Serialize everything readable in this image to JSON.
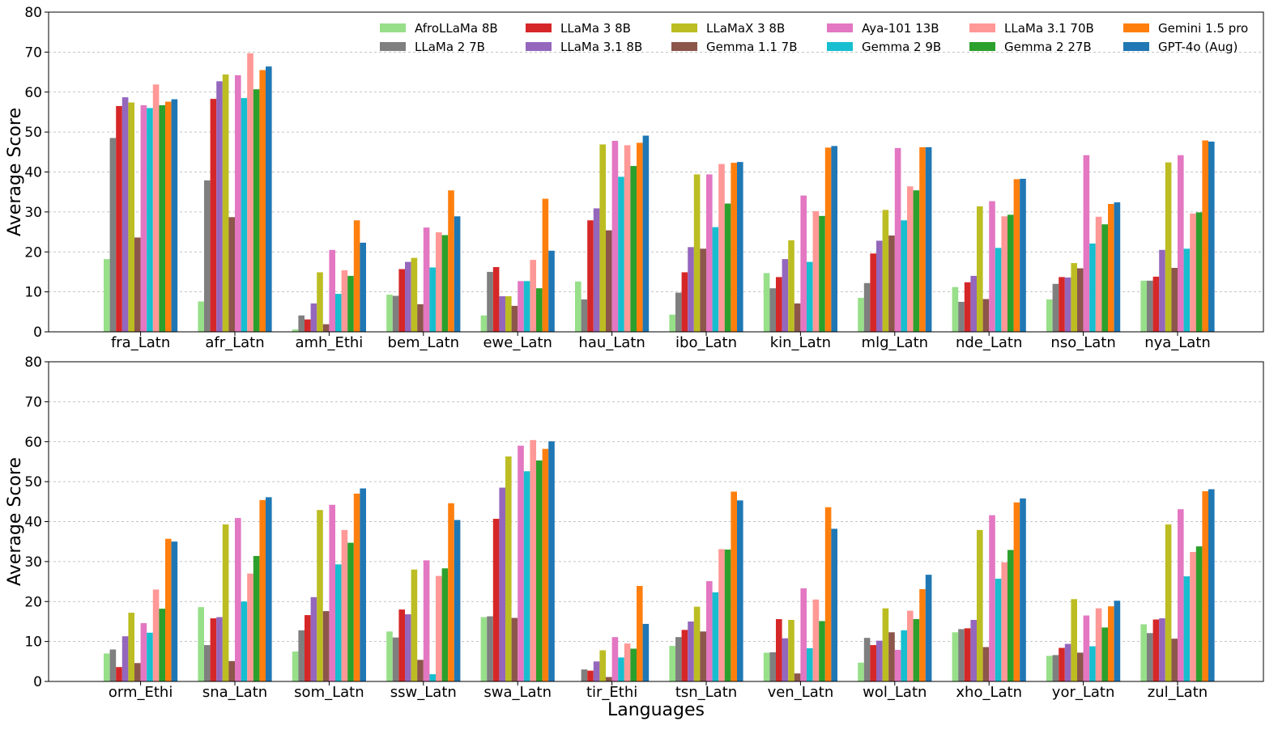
{
  "chart_data": [
    {
      "type": "bar",
      "ylabel": "Average Score",
      "xlabel": "",
      "ylim": [
        0,
        80
      ],
      "yticks": [
        0,
        10,
        20,
        30,
        40,
        50,
        60,
        70,
        80
      ],
      "grid": "horizontal dashed",
      "legend": "top-right",
      "categories": [
        "fra_Latn",
        "afr_Latn",
        "amh_Ethi",
        "bem_Latn",
        "ewe_Latn",
        "hau_Latn",
        "ibo_Latn",
        "kin_Latn",
        "mlg_Latn",
        "nde_Latn",
        "nso_Latn",
        "nya_Latn"
      ],
      "series": [
        {
          "name": "AfroLLaMa 8B",
          "color": "#98df8a",
          "values": [
            18.2,
            7.6,
            0.6,
            9.3,
            4.1,
            12.6,
            4.3,
            14.7,
            8.5,
            11.2,
            8.1,
            12.8
          ]
        },
        {
          "name": "LLaMa 2 7B",
          "color": "#7f7f7f",
          "values": [
            48.5,
            37.9,
            4.1,
            9.0,
            15.0,
            8.1,
            9.8,
            10.9,
            12.2,
            7.5,
            12.0,
            12.8
          ]
        },
        {
          "name": "LLaMa 3 8B",
          "color": "#d62728",
          "values": [
            56.5,
            58.3,
            3.1,
            15.7,
            16.2,
            27.9,
            14.9,
            13.7,
            19.6,
            12.4,
            13.7,
            13.8
          ]
        },
        {
          "name": "LLaMa 3.1 8B",
          "color": "#9467bd",
          "values": [
            58.7,
            62.7,
            7.1,
            17.5,
            8.9,
            30.9,
            21.2,
            18.2,
            22.8,
            14.0,
            13.6,
            20.5
          ]
        },
        {
          "name": "LLaMaX 3 8B",
          "color": "#bcbd22",
          "values": [
            57.4,
            64.4,
            14.9,
            18.5,
            8.9,
            46.9,
            39.4,
            22.9,
            30.5,
            31.4,
            17.2,
            42.4
          ]
        },
        {
          "name": "Gemma 1.1 7B",
          "color": "#8c564b",
          "values": [
            23.6,
            28.7,
            1.9,
            6.9,
            6.5,
            25.4,
            20.8,
            7.1,
            24.1,
            8.2,
            15.9,
            16.0
          ]
        },
        {
          "name": "Aya-101 13B",
          "color": "#e377c2",
          "values": [
            56.7,
            64.2,
            20.5,
            26.1,
            12.7,
            47.8,
            39.4,
            34.1,
            46.0,
            32.7,
            44.2,
            44.2
          ]
        },
        {
          "name": "Gemma 2 9B",
          "color": "#17becf",
          "values": [
            56.0,
            58.5,
            9.5,
            16.1,
            12.7,
            38.8,
            26.2,
            17.5,
            27.9,
            21.0,
            22.1,
            20.8
          ]
        },
        {
          "name": "LLaMa 3.1 70B",
          "color": "#ff9896",
          "values": [
            61.9,
            69.7,
            15.4,
            24.9,
            18.0,
            46.7,
            42.0,
            30.2,
            36.4,
            28.9,
            28.8,
            29.6
          ]
        },
        {
          "name": "Gemma 2 27B",
          "color": "#2ca02c",
          "values": [
            56.7,
            60.7,
            14.0,
            24.2,
            10.9,
            41.5,
            32.1,
            29.0,
            35.4,
            29.3,
            26.9,
            29.9
          ]
        },
        {
          "name": "Gemini 1.5 pro",
          "color": "#ff7f0e",
          "values": [
            57.6,
            65.5,
            27.9,
            35.4,
            33.3,
            47.3,
            42.3,
            46.1,
            46.2,
            38.2,
            32.0,
            47.9
          ]
        },
        {
          "name": "GPT-4o (Aug)",
          "color": "#1f77b4",
          "values": [
            58.2,
            66.4,
            22.3,
            28.9,
            20.3,
            49.1,
            42.5,
            46.5,
            46.2,
            38.3,
            32.4,
            47.6
          ]
        }
      ]
    },
    {
      "type": "bar",
      "ylabel": "Average Score",
      "xlabel": "Languages",
      "ylim": [
        0,
        80
      ],
      "yticks": [
        0,
        10,
        20,
        30,
        40,
        50,
        60,
        70,
        80
      ],
      "grid": "horizontal dashed",
      "categories": [
        "orm_Ethi",
        "sna_Latn",
        "som_Latn",
        "ssw_Latn",
        "swa_Latn",
        "tir_Ethi",
        "tsn_Latn",
        "ven_Latn",
        "wol_Latn",
        "xho_Latn",
        "yor_Latn",
        "zul_Latn"
      ],
      "series": [
        {
          "name": "AfroLLaMa 8B",
          "color": "#98df8a",
          "values": [
            7.0,
            18.6,
            7.5,
            12.5,
            16.1,
            0.0,
            8.9,
            7.2,
            4.7,
            12.3,
            6.4,
            14.3
          ]
        },
        {
          "name": "LLaMa 2 7B",
          "color": "#7f7f7f",
          "values": [
            8.0,
            9.1,
            12.8,
            11.0,
            16.3,
            3.0,
            11.1,
            7.3,
            10.9,
            13.1,
            6.6,
            12.1
          ]
        },
        {
          "name": "LLaMa 3 8B",
          "color": "#d62728",
          "values": [
            3.6,
            15.8,
            16.6,
            18.0,
            40.7,
            2.7,
            12.9,
            15.6,
            9.1,
            13.3,
            8.4,
            15.5
          ]
        },
        {
          "name": "LLaMa 3.1 8B",
          "color": "#9467bd",
          "values": [
            11.3,
            16.1,
            21.1,
            16.8,
            48.5,
            5.0,
            15.0,
            10.8,
            10.2,
            15.4,
            9.4,
            15.8
          ]
        },
        {
          "name": "LLaMaX 3 8B",
          "color": "#bcbd22",
          "values": [
            17.2,
            39.3,
            42.9,
            28.0,
            56.3,
            7.8,
            18.7,
            15.4,
            18.3,
            37.9,
            20.6,
            39.3
          ]
        },
        {
          "name": "Gemma 1.1 7B",
          "color": "#8c564b",
          "values": [
            4.6,
            5.1,
            17.6,
            5.4,
            15.9,
            1.1,
            12.5,
            2.0,
            12.3,
            8.6,
            7.2,
            10.7
          ]
        },
        {
          "name": "Aya-101 13B",
          "color": "#e377c2",
          "values": [
            14.6,
            40.9,
            44.2,
            30.3,
            59.0,
            11.1,
            25.1,
            23.3,
            7.9,
            41.6,
            16.5,
            43.1
          ]
        },
        {
          "name": "Gemma 2 9B",
          "color": "#17becf",
          "values": [
            12.2,
            20.0,
            29.3,
            1.8,
            52.6,
            6.0,
            22.3,
            8.3,
            12.8,
            25.7,
            8.8,
            26.3
          ]
        },
        {
          "name": "LLaMa 3.1 70B",
          "color": "#ff9896",
          "values": [
            23.0,
            27.0,
            37.9,
            26.4,
            60.4,
            9.5,
            33.1,
            20.5,
            17.7,
            29.8,
            18.3,
            32.4
          ]
        },
        {
          "name": "Gemma 2 27B",
          "color": "#2ca02c",
          "values": [
            18.2,
            31.4,
            34.7,
            28.3,
            55.3,
            8.2,
            33.0,
            15.1,
            15.6,
            32.9,
            13.5,
            33.8
          ]
        },
        {
          "name": "Gemini 1.5 pro",
          "color": "#ff7f0e",
          "values": [
            35.7,
            45.4,
            47.0,
            44.6,
            58.2,
            23.9,
            47.5,
            43.6,
            23.1,
            44.8,
            18.8,
            47.6
          ]
        },
        {
          "name": "GPT-4o (Aug)",
          "color": "#1f77b4",
          "values": [
            35.0,
            46.1,
            48.3,
            40.4,
            60.1,
            14.4,
            45.3,
            38.2,
            26.7,
            45.8,
            20.2,
            48.1
          ]
        }
      ]
    }
  ]
}
